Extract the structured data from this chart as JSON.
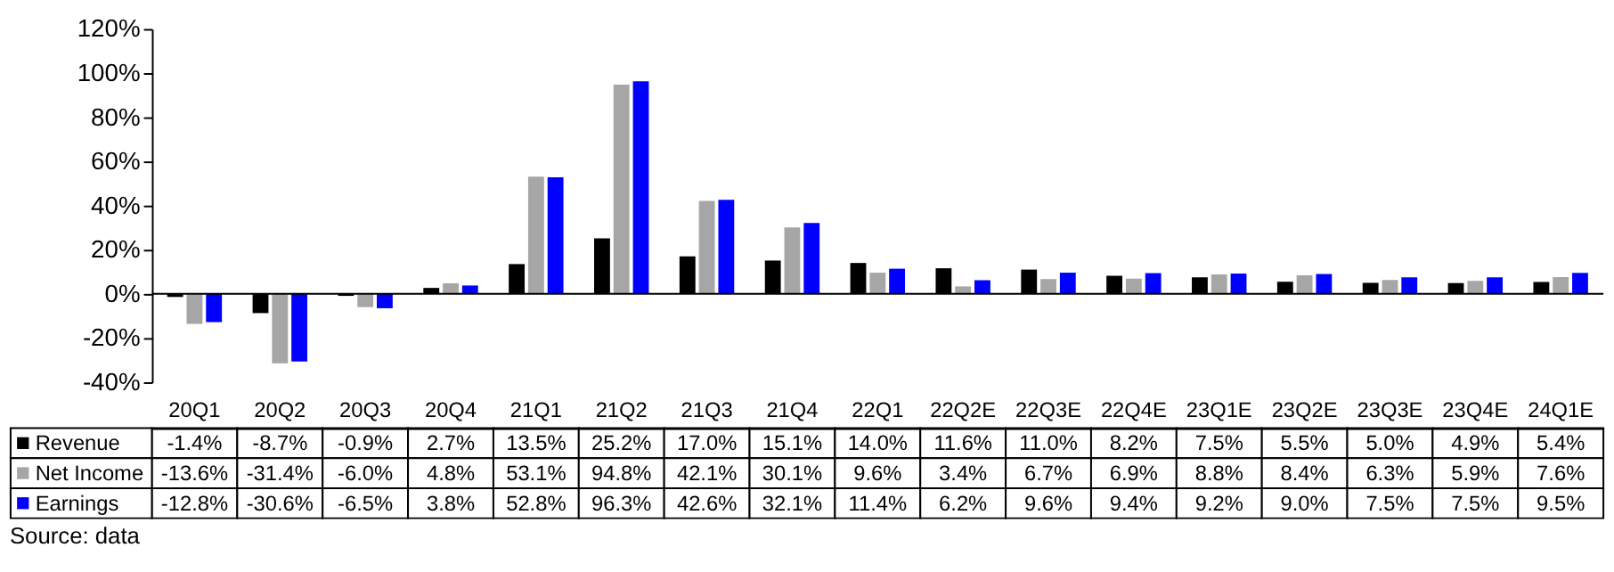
{
  "chart_data": {
    "type": "bar",
    "categories": [
      "20Q1",
      "20Q2",
      "20Q3",
      "20Q4",
      "21Q1",
      "21Q2",
      "21Q3",
      "21Q4",
      "22Q1",
      "22Q2E",
      "22Q3E",
      "22Q4E",
      "23Q1E",
      "23Q2E",
      "23Q3E",
      "23Q4E",
      "24Q1E"
    ],
    "series": [
      {
        "name": "Revenue",
        "color": "#000000",
        "values": [
          -1.4,
          -8.7,
          -0.9,
          2.7,
          13.5,
          25.2,
          17.0,
          15.1,
          14.0,
          11.6,
          11.0,
          8.2,
          7.5,
          5.5,
          5.0,
          4.9,
          5.4
        ],
        "value_labels": [
          "-1.4%",
          "-8.7%",
          "-0.9%",
          "2.7%",
          "13.5%",
          "25.2%",
          "17.0%",
          "15.1%",
          "14.0%",
          "11.6%",
          "11.0%",
          "8.2%",
          "7.5%",
          "5.5%",
          "5.0%",
          "4.9%",
          "5.4%"
        ]
      },
      {
        "name": "Net Income",
        "color": "#a6a6a6",
        "values": [
          -13.6,
          -31.4,
          -6.0,
          4.8,
          53.1,
          94.8,
          42.1,
          30.1,
          9.6,
          3.4,
          6.7,
          6.9,
          8.8,
          8.4,
          6.3,
          5.9,
          7.6
        ],
        "value_labels": [
          "-13.6%",
          "-31.4%",
          "-6.0%",
          "4.8%",
          "53.1%",
          "94.8%",
          "42.1%",
          "30.1%",
          "9.6%",
          "3.4%",
          "6.7%",
          "6.9%",
          "8.8%",
          "8.4%",
          "6.3%",
          "5.9%",
          "7.6%"
        ]
      },
      {
        "name": "Earnings",
        "color": "#0000ff",
        "values": [
          -12.8,
          -30.6,
          -6.5,
          3.8,
          52.8,
          96.3,
          42.6,
          32.1,
          11.4,
          6.2,
          9.6,
          9.4,
          9.2,
          9.0,
          7.5,
          7.5,
          9.5
        ],
        "value_labels": [
          "-12.8%",
          "-30.6%",
          "-6.5%",
          "3.8%",
          "52.8%",
          "96.3%",
          "42.6%",
          "32.1%",
          "11.4%",
          "6.2%",
          "9.6%",
          "9.4%",
          "9.2%",
          "9.0%",
          "7.5%",
          "7.5%",
          "9.5%"
        ]
      }
    ],
    "ylim": [
      -40,
      120
    ],
    "yticks": [
      {
        "value": -40,
        "label": "-40%"
      },
      {
        "value": -20,
        "label": "-20%"
      },
      {
        "value": 0,
        "label": "0%"
      },
      {
        "value": 20,
        "label": "20%"
      },
      {
        "value": 40,
        "label": "40%"
      },
      {
        "value": 60,
        "label": "60%"
      },
      {
        "value": 80,
        "label": "80%"
      },
      {
        "value": 100,
        "label": "100%"
      },
      {
        "value": 120,
        "label": "120%"
      }
    ],
    "ref_lines": [
      {
        "axis": "y",
        "value": 0
      }
    ],
    "grid": false,
    "legend": "bottom left",
    "annotations": [
      "Source: data"
    ]
  }
}
